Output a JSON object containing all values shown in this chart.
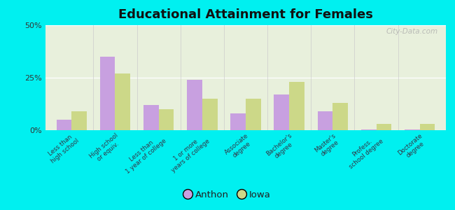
{
  "title": "Educational Attainment for Females",
  "categories": [
    "Less than\nhigh school",
    "High school\nor equiv.",
    "Less than\n1 year of college",
    "1 or more\nyears of college",
    "Associate\ndegree",
    "Bachelor's\ndegree",
    "Master's\ndegree",
    "Profess.\nschool degree",
    "Doctorate\ndegree"
  ],
  "anthon_values": [
    5,
    35,
    12,
    24,
    8,
    17,
    9,
    0.5,
    0.5
  ],
  "iowa_values": [
    9,
    27,
    10,
    15,
    15,
    23,
    13,
    3,
    3
  ],
  "anthon_color": "#c8a0e0",
  "iowa_color": "#ccd888",
  "background_color": "#00f0f0",
  "ylim": [
    0,
    50
  ],
  "yticks": [
    0,
    25,
    50
  ],
  "ytick_labels": [
    "0%",
    "25%",
    "50%"
  ],
  "legend_labels": [
    "Anthon",
    "Iowa"
  ],
  "bar_width": 0.35,
  "watermark": "City-Data.com"
}
